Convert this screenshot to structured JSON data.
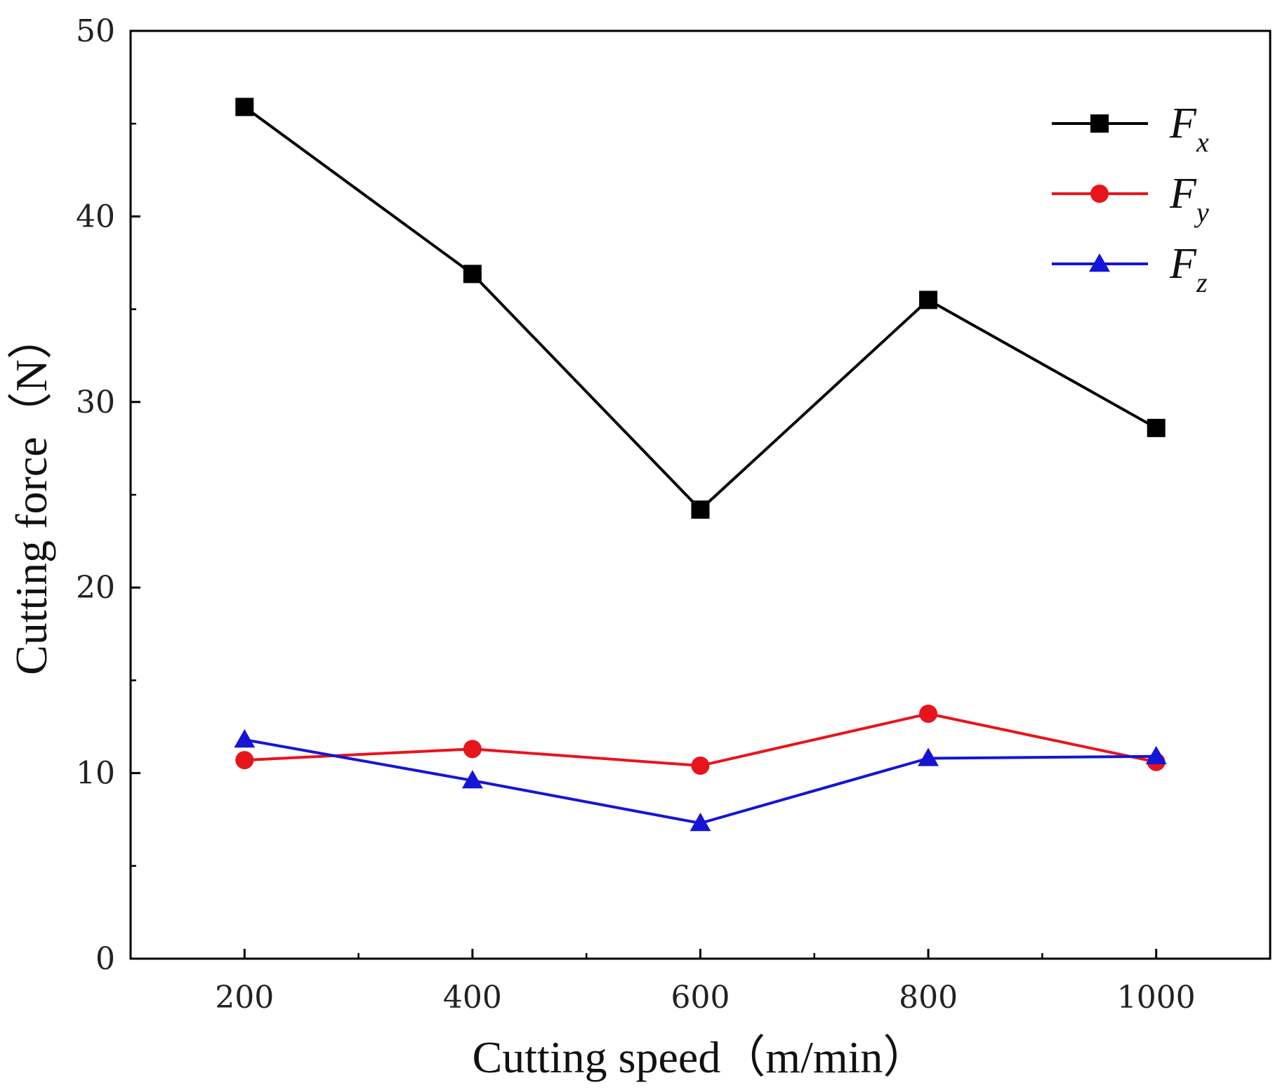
{
  "chart_data": {
    "type": "line",
    "title": "",
    "xlabel": "Cutting speed（m/min）",
    "ylabel": "Cutting force（N）",
    "x": [
      200,
      400,
      600,
      800,
      1000
    ],
    "x_ticks": [
      "200",
      "400",
      "600",
      "800",
      "1000"
    ],
    "y_ticks": [
      "0",
      "10",
      "20",
      "30",
      "40",
      "50"
    ],
    "xlim": [
      100,
      1100
    ],
    "ylim": [
      0,
      50
    ],
    "grid": false,
    "legend_position": "top-right",
    "series": [
      {
        "name": "F",
        "subscript": "x",
        "color": "#000000",
        "marker": "square",
        "values": [
          45.9,
          36.9,
          24.2,
          35.5,
          28.6
        ]
      },
      {
        "name": "F",
        "subscript": "y",
        "color": "#e8141c",
        "marker": "circle",
        "values": [
          10.7,
          11.3,
          10.4,
          13.2,
          10.6
        ]
      },
      {
        "name": "F",
        "subscript": "z",
        "color": "#1515d6",
        "marker": "triangle",
        "values": [
          11.8,
          9.6,
          7.3,
          10.8,
          10.9
        ]
      }
    ]
  }
}
